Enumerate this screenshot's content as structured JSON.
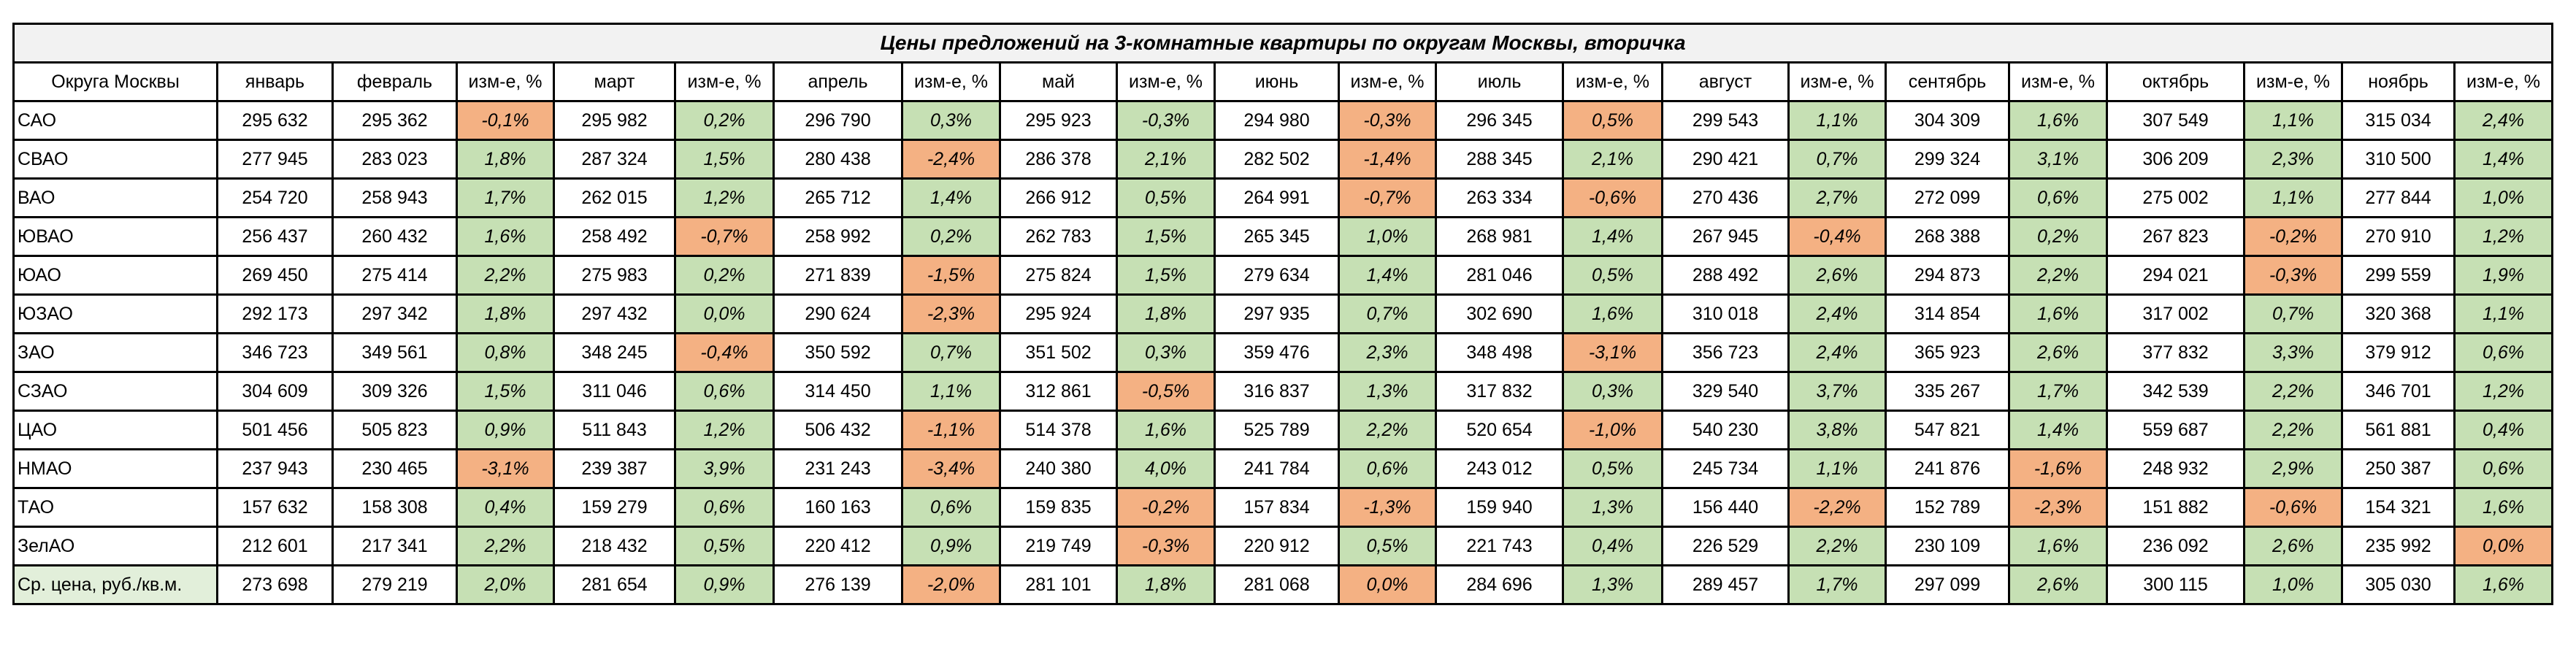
{
  "title": "Цены предложений на 3-комнатные квартиры по округам Москвы, вторичка",
  "colors": {
    "positive": "#C6E0B4",
    "negative": "#F4B183",
    "title_bg": "#F2F2F2",
    "avg_label_bg": "#E2EFDA"
  },
  "header": [
    "Округа Москвы",
    "январь",
    "февраль",
    "изм-е, %",
    "март",
    "изм-е, %",
    "апрель",
    "изм-е, %",
    "май",
    "изм-е, %",
    "июнь",
    "изм-е, %",
    "июль",
    "изм-е, %",
    "август",
    "изм-е, %",
    "сентябрь",
    "изм-е, %",
    "октябрь",
    "изм-е, %",
    "ноябрь",
    "изм-е, %"
  ],
  "rows": [
    [
      "САО",
      "295 632",
      "295 362",
      "-0,1%",
      "295 982",
      "0,2%",
      "296 790",
      "0,3%",
      "295 923",
      "-0,3%",
      "294 980",
      "-0,3%",
      "296 345",
      "0,5%",
      "299 543",
      "1,1%",
      "304 309",
      "1,6%",
      "307 549",
      "1,1%",
      "315 034",
      "2,4%"
    ],
    [
      "СВАО",
      "277 945",
      "283 023",
      "1,8%",
      "287 324",
      "1,5%",
      "280 438",
      "-2,4%",
      "286 378",
      "2,1%",
      "282 502",
      "-1,4%",
      "288 345",
      "2,1%",
      "290 421",
      "0,7%",
      "299 324",
      "3,1%",
      "306 209",
      "2,3%",
      "310 500",
      "1,4%"
    ],
    [
      "ВАО",
      "254 720",
      "258 943",
      "1,7%",
      "262 015",
      "1,2%",
      "265 712",
      "1,4%",
      "266 912",
      "0,5%",
      "264 991",
      "-0,7%",
      "263 334",
      "-0,6%",
      "270 436",
      "2,7%",
      "272 099",
      "0,6%",
      "275 002",
      "1,1%",
      "277 844",
      "1,0%"
    ],
    [
      "ЮВАО",
      "256 437",
      "260 432",
      "1,6%",
      "258 492",
      "-0,7%",
      "258 992",
      "0,2%",
      "262 783",
      "1,5%",
      "265 345",
      "1,0%",
      "268 981",
      "1,4%",
      "267 945",
      "-0,4%",
      "268 388",
      "0,2%",
      "267 823",
      "-0,2%",
      "270 910",
      "1,2%"
    ],
    [
      "ЮАО",
      "269 450",
      "275 414",
      "2,2%",
      "275 983",
      "0,2%",
      "271 839",
      "-1,5%",
      "275 824",
      "1,5%",
      "279 634",
      "1,4%",
      "281 046",
      "0,5%",
      "288 492",
      "2,6%",
      "294 873",
      "2,2%",
      "294 021",
      "-0,3%",
      "299 559",
      "1,9%"
    ],
    [
      "ЮЗАО",
      "292 173",
      "297 342",
      "1,8%",
      "297 432",
      "0,0%",
      "290 624",
      "-2,3%",
      "295 924",
      "1,8%",
      "297 935",
      "0,7%",
      "302 690",
      "1,6%",
      "310 018",
      "2,4%",
      "314 854",
      "1,6%",
      "317 002",
      "0,7%",
      "320 368",
      "1,1%"
    ],
    [
      "ЗАО",
      "346 723",
      "349 561",
      "0,8%",
      "348 245",
      "-0,4%",
      "350 592",
      "0,7%",
      "351 502",
      "0,3%",
      "359 476",
      "2,3%",
      "348 498",
      "-3,1%",
      "356 723",
      "2,4%",
      "365 923",
      "2,6%",
      "377 832",
      "3,3%",
      "379 912",
      "0,6%"
    ],
    [
      "СЗАО",
      "304 609",
      "309 326",
      "1,5%",
      "311 046",
      "0,6%",
      "314 450",
      "1,1%",
      "312 861",
      "-0,5%",
      "316 837",
      "1,3%",
      "317 832",
      "0,3%",
      "329 540",
      "3,7%",
      "335 267",
      "1,7%",
      "342 539",
      "2,2%",
      "346 701",
      "1,2%"
    ],
    [
      "ЦАО",
      "501 456",
      "505 823",
      "0,9%",
      "511 843",
      "1,2%",
      "506 432",
      "-1,1%",
      "514 378",
      "1,6%",
      "525 789",
      "2,2%",
      "520 654",
      "-1,0%",
      "540 230",
      "3,8%",
      "547 821",
      "1,4%",
      "559 687",
      "2,2%",
      "561 881",
      "0,4%"
    ],
    [
      "НМАО",
      "237 943",
      "230 465",
      "-3,1%",
      "239 387",
      "3,9%",
      "231 243",
      "-3,4%",
      "240 380",
      "4,0%",
      "241 784",
      "0,6%",
      "243 012",
      "0,5%",
      "245 734",
      "1,1%",
      "241 876",
      "-1,6%",
      "248 932",
      "2,9%",
      "250 387",
      "0,6%"
    ],
    [
      "ТАО",
      "157 632",
      "158 308",
      "0,4%",
      "159 279",
      "0,6%",
      "160 163",
      "0,6%",
      "159 835",
      "-0,2%",
      "157 834",
      "-1,3%",
      "159 940",
      "1,3%",
      "156 440",
      "-2,2%",
      "152 789",
      "-2,3%",
      "151 882",
      "-0,6%",
      "154 321",
      "1,6%"
    ],
    [
      "ЗелАО",
      "212 601",
      "217 341",
      "2,2%",
      "218 432",
      "0,5%",
      "220 412",
      "0,9%",
      "219 749",
      "-0,3%",
      "220 912",
      "0,5%",
      "221 743",
      "0,4%",
      "226 529",
      "2,2%",
      "230 109",
      "1,6%",
      "236 092",
      "2,6%",
      "235 992",
      "0,0%"
    ],
    [
      "Ср. цена, руб./кв.м.",
      "273 698",
      "279 219",
      "2,0%",
      "281 654",
      "0,9%",
      "276 139",
      "-2,0%",
      "281 101",
      "1,8%",
      "281 068",
      "0,0%",
      "284 696",
      "1,3%",
      "289 457",
      "1,7%",
      "297 099",
      "2,6%",
      "300 115",
      "1,0%",
      "305 030",
      "1,6%"
    ]
  ],
  "highlight": [
    [
      "neg",
      "pos",
      "pos",
      "pos",
      "neg",
      "neg",
      "pos",
      "pos",
      "pos",
      "pos"
    ],
    [
      "pos",
      "pos",
      "neg",
      "pos",
      "neg",
      "pos",
      "pos",
      "pos",
      "pos",
      "pos"
    ],
    [
      "pos",
      "pos",
      "pos",
      "pos",
      "neg",
      "neg",
      "pos",
      "pos",
      "pos",
      "pos"
    ],
    [
      "pos",
      "neg",
      "pos",
      "pos",
      "pos",
      "pos",
      "neg",
      "pos",
      "neg",
      "pos"
    ],
    [
      "pos",
      "pos",
      "neg",
      "pos",
      "pos",
      "pos",
      "pos",
      "pos",
      "neg",
      "pos"
    ],
    [
      "pos",
      "pos",
      "neg",
      "pos",
      "pos",
      "pos",
      "pos",
      "pos",
      "pos",
      "pos"
    ],
    [
      "pos",
      "neg",
      "pos",
      "pos",
      "pos",
      "neg",
      "pos",
      "pos",
      "pos",
      "pos"
    ],
    [
      "pos",
      "pos",
      "pos",
      "neg",
      "pos",
      "pos",
      "pos",
      "pos",
      "pos",
      "pos"
    ],
    [
      "pos",
      "pos",
      "neg",
      "pos",
      "pos",
      "neg",
      "pos",
      "pos",
      "pos",
      "pos"
    ],
    [
      "neg",
      "pos",
      "neg",
      "pos",
      "pos",
      "pos",
      "pos",
      "neg",
      "pos",
      "pos"
    ],
    [
      "pos",
      "pos",
      "pos",
      "neg",
      "neg",
      "pos",
      "neg",
      "neg",
      "neg",
      "pos"
    ],
    [
      "pos",
      "pos",
      "pos",
      "neg",
      "pos",
      "pos",
      "pos",
      "pos",
      "pos",
      "neg"
    ],
    [
      "pos",
      "pos",
      "neg",
      "pos",
      "neg",
      "pos",
      "pos",
      "pos",
      "pos",
      "pos"
    ]
  ],
  "chart_data": {
    "type": "table",
    "title": "Цены предложений на 3-комнатные квартиры по округам Москвы, вторичка",
    "categories": [
      "январь",
      "февраль",
      "март",
      "апрель",
      "май",
      "июнь",
      "июль",
      "август",
      "сентябрь",
      "октябрь",
      "ноябрь"
    ],
    "series": [
      {
        "name": "САО",
        "values": [
          295632,
          295362,
          295982,
          296790,
          295923,
          294980,
          296345,
          299543,
          304309,
          307549,
          315034
        ],
        "change_pct": [
          -0.1,
          0.2,
          0.3,
          -0.3,
          -0.3,
          0.5,
          1.1,
          1.6,
          1.1,
          2.4
        ]
      },
      {
        "name": "СВАО",
        "values": [
          277945,
          283023,
          287324,
          280438,
          286378,
          282502,
          288345,
          290421,
          299324,
          306209,
          310500
        ],
        "change_pct": [
          1.8,
          1.5,
          -2.4,
          2.1,
          -1.4,
          2.1,
          0.7,
          3.1,
          2.3,
          1.4
        ]
      },
      {
        "name": "ВАО",
        "values": [
          254720,
          258943,
          262015,
          265712,
          266912,
          264991,
          263334,
          270436,
          272099,
          275002,
          277844
        ],
        "change_pct": [
          1.7,
          1.2,
          1.4,
          0.5,
          -0.7,
          -0.6,
          2.7,
          0.6,
          1.1,
          1.0
        ]
      },
      {
        "name": "ЮВАО",
        "values": [
          256437,
          260432,
          258492,
          258992,
          262783,
          265345,
          268981,
          267945,
          268388,
          267823,
          270910
        ],
        "change_pct": [
          1.6,
          -0.7,
          0.2,
          1.5,
          1.0,
          1.4,
          -0.4,
          0.2,
          -0.2,
          1.2
        ]
      },
      {
        "name": "ЮАО",
        "values": [
          269450,
          275414,
          275983,
          271839,
          275824,
          279634,
          281046,
          288492,
          294873,
          294021,
          299559
        ],
        "change_pct": [
          2.2,
          0.2,
          -1.5,
          1.5,
          1.4,
          0.5,
          2.6,
          2.2,
          -0.3,
          1.9
        ]
      },
      {
        "name": "ЮЗАО",
        "values": [
          292173,
          297342,
          297432,
          290624,
          295924,
          297935,
          302690,
          310018,
          314854,
          317002,
          320368
        ],
        "change_pct": [
          1.8,
          0.0,
          -2.3,
          1.8,
          0.7,
          1.6,
          2.4,
          1.6,
          0.7,
          1.1
        ]
      },
      {
        "name": "ЗАО",
        "values": [
          346723,
          349561,
          348245,
          350592,
          351502,
          359476,
          348498,
          356723,
          365923,
          377832,
          379912
        ],
        "change_pct": [
          0.8,
          -0.4,
          0.7,
          0.3,
          2.3,
          -3.1,
          2.4,
          2.6,
          3.3,
          0.6
        ]
      },
      {
        "name": "СЗАО",
        "values": [
          304609,
          309326,
          311046,
          314450,
          312861,
          316837,
          317832,
          329540,
          335267,
          342539,
          346701
        ],
        "change_pct": [
          1.5,
          0.6,
          1.1,
          -0.5,
          1.3,
          0.3,
          3.7,
          1.7,
          2.2,
          1.2
        ]
      },
      {
        "name": "ЦАО",
        "values": [
          501456,
          505823,
          511843,
          506432,
          514378,
          525789,
          520654,
          540230,
          547821,
          559687,
          561881
        ],
        "change_pct": [
          0.9,
          1.2,
          -1.1,
          1.6,
          2.2,
          -1.0,
          3.8,
          1.4,
          2.2,
          0.4
        ]
      },
      {
        "name": "НМАО",
        "values": [
          237943,
          230465,
          239387,
          231243,
          240380,
          241784,
          243012,
          245734,
          241876,
          248932,
          250387
        ],
        "change_pct": [
          -3.1,
          3.9,
          -3.4,
          4.0,
          0.6,
          0.5,
          1.1,
          -1.6,
          2.9,
          0.6
        ]
      },
      {
        "name": "ТАО",
        "values": [
          157632,
          158308,
          159279,
          160163,
          159835,
          157834,
          159940,
          156440,
          152789,
          151882,
          154321
        ],
        "change_pct": [
          0.4,
          0.6,
          0.6,
          -0.2,
          -1.3,
          1.3,
          -2.2,
          -2.3,
          -0.6,
          1.6
        ]
      },
      {
        "name": "ЗелАО",
        "values": [
          212601,
          217341,
          218432,
          220412,
          219749,
          220912,
          221743,
          226529,
          230109,
          236092,
          235992
        ],
        "change_pct": [
          2.2,
          0.5,
          0.9,
          -0.3,
          0.5,
          0.4,
          2.2,
          1.6,
          2.6,
          0.0
        ]
      },
      {
        "name": "Ср. цена, руб./кв.м.",
        "values": [
          273698,
          279219,
          281654,
          276139,
          281101,
          281068,
          284696,
          289457,
          297099,
          300115,
          305030
        ],
        "change_pct": [
          2.0,
          0.9,
          -2.0,
          1.8,
          0.0,
          1.3,
          1.7,
          2.6,
          1.0,
          1.6
        ]
      }
    ]
  }
}
